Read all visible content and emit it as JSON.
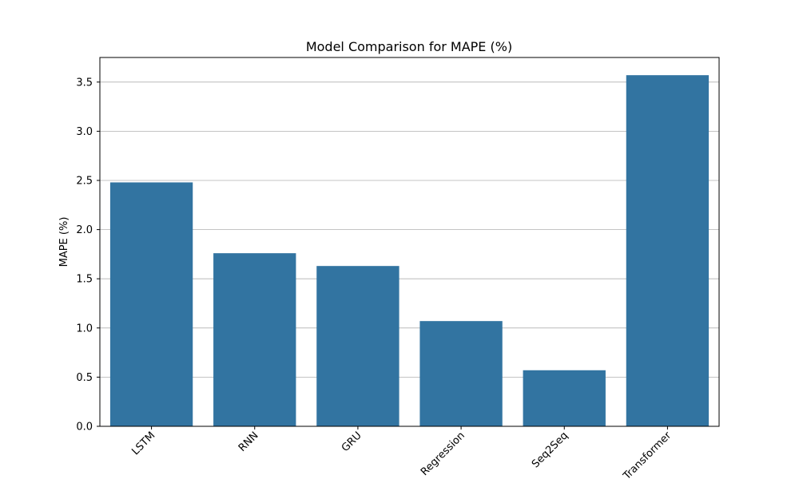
{
  "chart_data": {
    "type": "bar",
    "title": "Model Comparison for MAPE (%)",
    "xlabel": "",
    "ylabel": "MAPE (%)",
    "categories": [
      "LSTM",
      "RNN",
      "GRU",
      "Regression",
      "Seq2Seq",
      "Transformer"
    ],
    "values": [
      2.48,
      1.76,
      1.63,
      1.07,
      0.57,
      3.57
    ],
    "ylim": [
      0,
      3.75
    ],
    "yticks": [
      "0.0",
      "0.5",
      "1.0",
      "1.5",
      "2.0",
      "2.5",
      "3.0",
      "3.5"
    ],
    "grid": "horizontal",
    "bar_color": "#3274a1"
  }
}
